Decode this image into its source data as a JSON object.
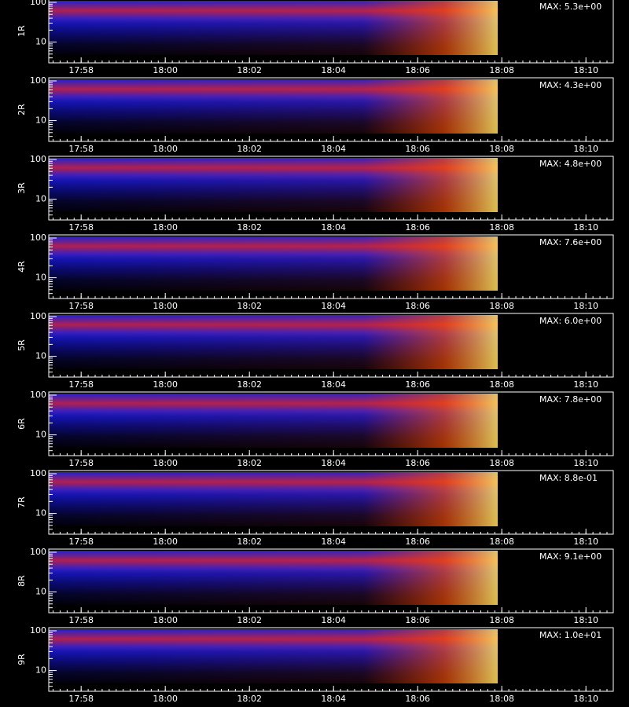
{
  "chart_data": [
    {
      "type": "heatmap",
      "ylabel": "1R",
      "annotation": "MAX: 5.3e+00",
      "log_y": true,
      "xlim": [
        1077.23,
        1090.65
      ],
      "xticks": [
        {
          "value": 1078,
          "label": "17:58"
        },
        {
          "value": 1080,
          "label": "18:00"
        },
        {
          "value": 1082,
          "label": "18:02"
        },
        {
          "value": 1084,
          "label": "18:04"
        },
        {
          "value": 1086,
          "label": "18:06"
        },
        {
          "value": 1088,
          "label": "18:08"
        },
        {
          "value": 1090,
          "label": "18:10"
        }
      ],
      "ylim": [
        3,
        120
      ],
      "yticks": [
        10,
        100
      ]
    },
    {
      "type": "heatmap",
      "ylabel": "2R",
      "annotation": "MAX: 4.3e+00",
      "log_y": true,
      "xlim": [
        1077.23,
        1090.65
      ],
      "xticks": [
        {
          "value": 1078,
          "label": "17:58"
        },
        {
          "value": 1080,
          "label": "18:00"
        },
        {
          "value": 1082,
          "label": "18:02"
        },
        {
          "value": 1084,
          "label": "18:04"
        },
        {
          "value": 1086,
          "label": "18:06"
        },
        {
          "value": 1088,
          "label": "18:08"
        },
        {
          "value": 1090,
          "label": "18:10"
        }
      ],
      "ylim": [
        3,
        120
      ],
      "yticks": [
        10,
        100
      ]
    },
    {
      "type": "heatmap",
      "ylabel": "3R",
      "annotation": "MAX: 4.8e+00",
      "log_y": true,
      "xlim": [
        1077.23,
        1090.65
      ],
      "xticks": [
        {
          "value": 1078,
          "label": "17:58"
        },
        {
          "value": 1080,
          "label": "18:00"
        },
        {
          "value": 1082,
          "label": "18:02"
        },
        {
          "value": 1084,
          "label": "18:04"
        },
        {
          "value": 1086,
          "label": "18:06"
        },
        {
          "value": 1088,
          "label": "18:08"
        },
        {
          "value": 1090,
          "label": "18:10"
        }
      ],
      "ylim": [
        3,
        120
      ],
      "yticks": [
        10,
        100
      ]
    },
    {
      "type": "heatmap",
      "ylabel": "4R",
      "annotation": "MAX: 7.6e+00",
      "log_y": true,
      "xlim": [
        1077.23,
        1090.65
      ],
      "xticks": [
        {
          "value": 1078,
          "label": "17:58"
        },
        {
          "value": 1080,
          "label": "18:00"
        },
        {
          "value": 1082,
          "label": "18:02"
        },
        {
          "value": 1084,
          "label": "18:04"
        },
        {
          "value": 1086,
          "label": "18:06"
        },
        {
          "value": 1088,
          "label": "18:08"
        },
        {
          "value": 1090,
          "label": "18:10"
        }
      ],
      "ylim": [
        3,
        120
      ],
      "yticks": [
        10,
        100
      ]
    },
    {
      "type": "heatmap",
      "ylabel": "5R",
      "annotation": "MAX: 6.0e+00",
      "log_y": true,
      "xlim": [
        1077.23,
        1090.65
      ],
      "xticks": [
        {
          "value": 1078,
          "label": "17:58"
        },
        {
          "value": 1080,
          "label": "18:00"
        },
        {
          "value": 1082,
          "label": "18:02"
        },
        {
          "value": 1084,
          "label": "18:04"
        },
        {
          "value": 1086,
          "label": "18:06"
        },
        {
          "value": 1088,
          "label": "18:08"
        },
        {
          "value": 1090,
          "label": "18:10"
        }
      ],
      "ylim": [
        3,
        120
      ],
      "yticks": [
        10,
        100
      ]
    },
    {
      "type": "heatmap",
      "ylabel": "6R",
      "annotation": "MAX: 7.8e+00",
      "log_y": true,
      "xlim": [
        1077.23,
        1090.65
      ],
      "xticks": [
        {
          "value": 1078,
          "label": "17:58"
        },
        {
          "value": 1080,
          "label": "18:00"
        },
        {
          "value": 1082,
          "label": "18:02"
        },
        {
          "value": 1084,
          "label": "18:04"
        },
        {
          "value": 1086,
          "label": "18:06"
        },
        {
          "value": 1088,
          "label": "18:08"
        },
        {
          "value": 1090,
          "label": "18:10"
        }
      ],
      "ylim": [
        3,
        120
      ],
      "yticks": [
        10,
        100
      ]
    },
    {
      "type": "heatmap",
      "ylabel": "7R",
      "annotation": "MAX: 8.8e-01",
      "log_y": true,
      "xlim": [
        1077.23,
        1090.65
      ],
      "xticks": [
        {
          "value": 1078,
          "label": "17:58"
        },
        {
          "value": 1080,
          "label": "18:00"
        },
        {
          "value": 1082,
          "label": "18:02"
        },
        {
          "value": 1084,
          "label": "18:04"
        },
        {
          "value": 1086,
          "label": "18:06"
        },
        {
          "value": 1088,
          "label": "18:08"
        },
        {
          "value": 1090,
          "label": "18:10"
        }
      ],
      "ylim": [
        3,
        120
      ],
      "yticks": [
        10,
        100
      ]
    },
    {
      "type": "heatmap",
      "ylabel": "8R",
      "annotation": "MAX: 9.1e+00",
      "log_y": true,
      "xlim": [
        1077.23,
        1090.65
      ],
      "xticks": [
        {
          "value": 1078,
          "label": "17:58"
        },
        {
          "value": 1080,
          "label": "18:00"
        },
        {
          "value": 1082,
          "label": "18:02"
        },
        {
          "value": 1084,
          "label": "18:04"
        },
        {
          "value": 1086,
          "label": "18:06"
        },
        {
          "value": 1088,
          "label": "18:08"
        },
        {
          "value": 1090,
          "label": "18:10"
        }
      ],
      "ylim": [
        3,
        120
      ],
      "yticks": [
        10,
        100
      ]
    },
    {
      "type": "heatmap",
      "ylabel": "9R",
      "annotation": "MAX: 1.0e+01",
      "log_y": true,
      "xlim": [
        1077.23,
        1090.65
      ],
      "xticks": [
        {
          "value": 1078,
          "label": "17:58"
        },
        {
          "value": 1080,
          "label": "18:00"
        },
        {
          "value": 1082,
          "label": "18:02"
        },
        {
          "value": 1084,
          "label": "18:04"
        },
        {
          "value": 1086,
          "label": "18:06"
        },
        {
          "value": 1088,
          "label": "18:08"
        },
        {
          "value": 1090,
          "label": "18:10"
        }
      ],
      "ylim": [
        3,
        120
      ],
      "yticks": [
        10,
        100
      ]
    }
  ]
}
